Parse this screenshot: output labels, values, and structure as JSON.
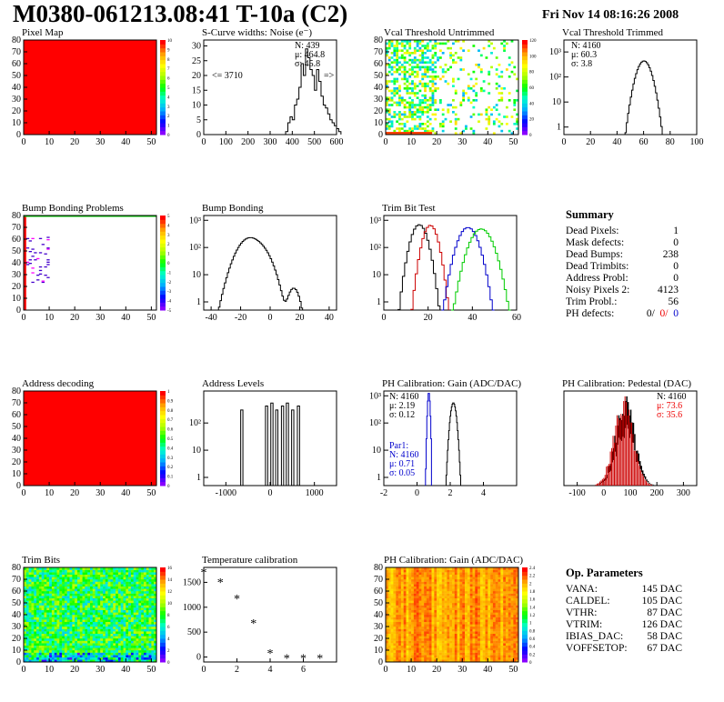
{
  "header": {
    "title": "M0380-061213.08:41 T-10a (C2)",
    "date": "Fri Nov 14 08:16:26 2008"
  },
  "colors": {
    "map_red": "#ff0000",
    "trim_red": "#cc0000",
    "trim_blue": "#0000cc",
    "trim_green": "#00cc00",
    "par1_blue": "#0000cc",
    "stats_red": "#ee0000"
  },
  "chart_data": [
    {
      "id": "pixel-map",
      "type": "heatmap",
      "title": "Pixel Map",
      "xlim": [
        0,
        52
      ],
      "ylim": [
        0,
        80
      ],
      "xticks": [
        "0",
        "10",
        "20",
        "30",
        "40",
        "50"
      ],
      "yticks": [
        "0",
        "10",
        "20",
        "30",
        "40",
        "50",
        "60",
        "70",
        "80"
      ],
      "palette_scale": [
        "0",
        "1",
        "2",
        "3",
        "4",
        "5",
        "6",
        "7",
        "8",
        "9",
        "10"
      ],
      "fill": "uniform",
      "value": 10
    },
    {
      "id": "scurve-widths",
      "type": "bar",
      "title": "S-Curve widths: Noise (e⁻)",
      "xlim": [
        0,
        600
      ],
      "ylim": [
        0,
        32
      ],
      "xticks": [
        "0",
        "100",
        "200",
        "300",
        "400",
        "500",
        "600"
      ],
      "yticks": [
        "0",
        "5",
        "10",
        "15",
        "20",
        "25",
        "30"
      ],
      "stats": {
        "n": "N: 439",
        "mean": "μ: 464.8",
        "sigma": "σ: 45.8"
      },
      "underflow": "<= 3710",
      "overflow": "=>",
      "bin_start": 370,
      "bin_width": 10,
      "values": [
        1,
        4,
        6,
        5,
        10,
        12,
        16,
        24,
        20,
        29,
        26,
        22,
        20,
        15,
        22,
        18,
        13,
        10,
        9,
        7,
        5,
        4,
        3,
        2,
        1
      ]
    },
    {
      "id": "vcal-untrimmed",
      "type": "heatmap",
      "title": "Vcal Threshold Untrimmed",
      "xlim": [
        0,
        52
      ],
      "ylim": [
        0,
        80
      ],
      "xticks": [
        "0",
        "10",
        "20",
        "30",
        "40",
        "50"
      ],
      "yticks": [
        "0",
        "10",
        "20",
        "30",
        "40",
        "50",
        "60",
        "70",
        "80"
      ],
      "palette_scale": [
        "0",
        "20",
        "40",
        "60",
        "80",
        "100",
        "120"
      ],
      "fill": "sparse-noise"
    },
    {
      "id": "vcal-trimmed",
      "type": "bar",
      "title": "Vcal Threshold Trimmed",
      "log_y": true,
      "xlim": [
        0,
        100
      ],
      "ylim": [
        0.5,
        3000
      ],
      "xticks": [
        "0",
        "20",
        "40",
        "60",
        "80",
        "100"
      ],
      "yticks": [
        "1",
        "10",
        "10²",
        "10³"
      ],
      "stats": {
        "n": "N: 4160",
        "mean": "μ: 60.3",
        "sigma": "σ: 3.8"
      },
      "gauss": {
        "mean": 60.3,
        "sigma": 3.8,
        "n": 4160,
        "bin": 1
      }
    },
    {
      "id": "bump-bonding-problems",
      "type": "heatmap",
      "title": "Bump Bonding Problems",
      "xlim": [
        0,
        52
      ],
      "ylim": [
        0,
        80
      ],
      "xticks": [
        "0",
        "10",
        "20",
        "30",
        "40",
        "50"
      ],
      "yticks": [
        "0",
        "10",
        "20",
        "30",
        "40",
        "50",
        "60",
        "70",
        "80"
      ],
      "palette_scale": [
        "-5",
        "-4",
        "-3",
        "-2",
        "-1",
        "0",
        "1",
        "2",
        "3",
        "4",
        "5"
      ],
      "fill": "left-column"
    },
    {
      "id": "bump-bonding",
      "type": "bar",
      "title": "Bump Bonding",
      "log_y": true,
      "xlim": [
        -45,
        45
      ],
      "ylim": [
        0.5,
        1500
      ],
      "xticks": [
        "-40",
        "-20",
        "0",
        "20",
        "40"
      ],
      "yticks": [
        "1",
        "10",
        "10²",
        "10³"
      ],
      "gauss2": [
        {
          "mean": -14,
          "sigma": 6,
          "n": 3300
        },
        {
          "mean": -5,
          "sigma": 5,
          "n": 620
        },
        {
          "mean": 16,
          "sigma": 3,
          "n": 24
        }
      ]
    },
    {
      "id": "trim-bit-test",
      "type": "bar",
      "title": "Trim Bit Test",
      "log_y": true,
      "xlim": [
        0,
        60
      ],
      "ylim": [
        0.5,
        1500
      ],
      "xticks": [
        "0",
        "20",
        "40",
        "60"
      ],
      "yticks": [
        "1",
        "10",
        "10²",
        "10³"
      ],
      "series": [
        {
          "color": "#000000",
          "mean": 16,
          "sigma": 2.4,
          "n": 4160
        },
        {
          "color": "#cc0000",
          "mean": 21,
          "sigma": 2.2,
          "n": 3600
        },
        {
          "color": "#0000cc",
          "mean": 38,
          "sigma": 3.0,
          "n": 4100
        },
        {
          "color": "#00cc00",
          "mean": 44,
          "sigma": 3.4,
          "n": 4100
        }
      ]
    },
    {
      "id": "address-decoding",
      "type": "heatmap",
      "title": "Address decoding",
      "xlim": [
        0,
        52
      ],
      "ylim": [
        0,
        80
      ],
      "xticks": [
        "0",
        "10",
        "20",
        "30",
        "40",
        "50"
      ],
      "yticks": [
        "0",
        "10",
        "20",
        "30",
        "40",
        "50",
        "60",
        "70",
        "80"
      ],
      "palette_scale": [
        "0",
        "0.1",
        "0.2",
        "0.3",
        "0.4",
        "0.5",
        "0.6",
        "0.7",
        "0.8",
        "0.9",
        "1"
      ],
      "fill": "uniform",
      "value": 1
    },
    {
      "id": "address-levels",
      "type": "bar",
      "title": "Address Levels",
      "log_y": true,
      "xlim": [
        -1500,
        1500
      ],
      "ylim": [
        0.5,
        1500
      ],
      "xticks": [
        "-1000",
        "0",
        "1000"
      ],
      "yticks": [
        "1",
        "10",
        "10²"
      ],
      "peaks": [
        -640,
        -80,
        40,
        150,
        280,
        390,
        510,
        640
      ]
    },
    {
      "id": "ph-gain",
      "type": "bar",
      "title": "PH Calibration: Gain (ADC/DAC)",
      "log_y": true,
      "xlim": [
        -2,
        6
      ],
      "ylim": [
        0.5,
        1500
      ],
      "xticks": [
        "-2",
        "0",
        "2",
        "4"
      ],
      "yticks": [
        "1",
        "10",
        "10²",
        "10³"
      ],
      "stats": {
        "n": "N: 4160",
        "mean": "μ: 2.19",
        "sigma": "σ: 0.12"
      },
      "par1": {
        "label": "Par1:",
        "n": "N: 4160",
        "mean": "μ: 0.71",
        "sigma": "σ: 0.05"
      },
      "series": [
        {
          "color": "#000000",
          "mean": 2.19,
          "sigma": 0.12,
          "n": 4160
        },
        {
          "color": "#0000cc",
          "mean": 0.71,
          "sigma": 0.05,
          "n": 4160
        }
      ]
    },
    {
      "id": "ph-pedestal",
      "type": "bar",
      "title": "PH Calibration: Pedestal (DAC)",
      "xlim": [
        -150,
        350
      ],
      "ylim": [
        0,
        100
      ],
      "xticks": [
        "-100",
        "0",
        "100",
        "200",
        "300"
      ],
      "yticks": [],
      "stats": {
        "n": "N: 4160",
        "mean": "μ: 73.6",
        "sigma": "σ: 35.6"
      },
      "gauss": {
        "mean": 73.6,
        "sigma": 35.6
      }
    },
    {
      "id": "trim-bits",
      "type": "heatmap",
      "title": "Trim Bits",
      "xlim": [
        0,
        52
      ],
      "ylim": [
        0,
        80
      ],
      "xticks": [
        "0",
        "10",
        "20",
        "30",
        "40",
        "50"
      ],
      "yticks": [
        "0",
        "10",
        "20",
        "30",
        "40",
        "50",
        "60",
        "70",
        "80"
      ],
      "palette_scale": [
        "0",
        "2",
        "4",
        "6",
        "8",
        "10",
        "12",
        "14",
        "16"
      ],
      "fill": "trim"
    },
    {
      "id": "temperature-calibration",
      "type": "scatter",
      "title": "Temperature calibration",
      "xlim": [
        0,
        8
      ],
      "ylim": [
        -100,
        1800
      ],
      "xticks": [
        "0",
        "2",
        "4",
        "6"
      ],
      "yticks": [
        "0",
        "500",
        "1000",
        "1500"
      ],
      "x": [
        0,
        1,
        2,
        3,
        4,
        5,
        6,
        7
      ],
      "y": [
        1690,
        1490,
        1160,
        670,
        60,
        -40,
        -40,
        -40
      ]
    },
    {
      "id": "ph-gain-map",
      "type": "heatmap",
      "title": "PH Calibration: Gain (ADC/DAC)",
      "xlim": [
        0,
        52
      ],
      "ylim": [
        0,
        80
      ],
      "xticks": [
        "0",
        "10",
        "20",
        "30",
        "40",
        "50"
      ],
      "yticks": [
        "0",
        "10",
        "20",
        "30",
        "40",
        "50",
        "60",
        "70",
        "80"
      ],
      "palette_scale": [
        "0",
        "0.2",
        "0.4",
        "0.6",
        "0.8",
        "1",
        "1.2",
        "1.4",
        "1.6",
        "1.8",
        "2",
        "2.2",
        "2.4"
      ],
      "fill": "gain"
    }
  ],
  "summary": {
    "title": "Summary",
    "rows": [
      {
        "label": "Dead Pixels:",
        "value": "1"
      },
      {
        "label": "Mask defects:",
        "value": "0"
      },
      {
        "label": "Dead Bumps:",
        "value": "238"
      },
      {
        "label": "Dead Trimbits:",
        "value": "0"
      },
      {
        "label": "Address Probl:",
        "value": "0"
      },
      {
        "label": "Noisy Pixels 2:",
        "value": "4123"
      },
      {
        "label": "Trim Probl.:",
        "value": "56"
      }
    ],
    "ph_defects": {
      "label": "PH defects:",
      "v1": "0/",
      "v2": "0/",
      "v3": "0"
    }
  },
  "op_params": {
    "title": "Op. Parameters",
    "rows": [
      {
        "label": "VANA:",
        "value": "145 DAC"
      },
      {
        "label": "CALDEL:",
        "value": "105 DAC"
      },
      {
        "label": "VTHR:",
        "value": "87 DAC"
      },
      {
        "label": "VTRIM:",
        "value": "126 DAC"
      },
      {
        "label": "IBIAS_DAC:",
        "value": "58 DAC"
      },
      {
        "label": "VOFFSETOP:",
        "value": "67 DAC"
      }
    ]
  }
}
